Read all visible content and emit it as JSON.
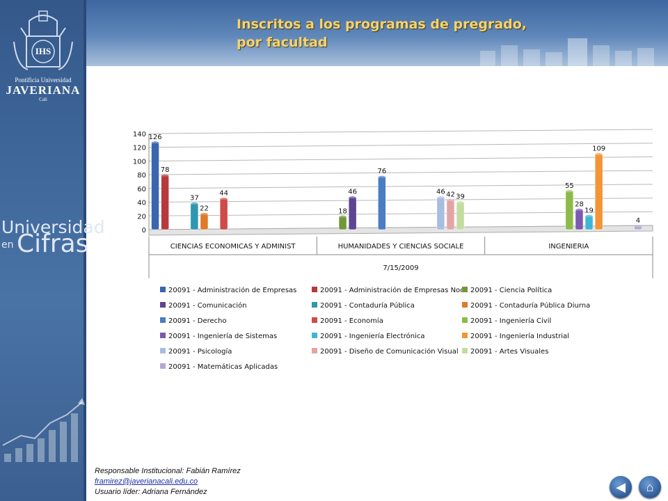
{
  "page": {
    "title_line1": "Inscritos a los programas de pregrado,",
    "title_line2": "por facultad"
  },
  "sidebar": {
    "logo": {
      "line1": "Pontificia Universidad",
      "line2": "JAVERIANA",
      "line3": "Cali",
      "monogram": "IHS"
    },
    "brand": {
      "line1": "Universidad",
      "line2": "en",
      "line3": "Cifras"
    }
  },
  "footer": {
    "responsible": "Responsable Institucional: Fabián Ramírez",
    "email": "framirez@javerianacali.edu.co",
    "leader": "Usuario líder: Adriana Fernández"
  },
  "nav": {
    "back_icon": "back-arrow-icon",
    "home_icon": "home-icon"
  },
  "chart_data": {
    "type": "bar",
    "title": "",
    "xlabel": "7/15/2009",
    "ylabel": "",
    "ylim": [
      0,
      140
    ],
    "yticks": [
      0,
      20,
      40,
      60,
      80,
      100,
      120,
      140
    ],
    "grid": true,
    "legend_position": "bottom",
    "categories": [
      "CIENCIAS ECONOMICAS Y ADMINIST",
      "HUMANIDADES Y CIENCIAS SOCIALE",
      "INGENIERIA"
    ],
    "series": [
      {
        "name": "20091 - Administración de Empresas",
        "color": "#3a66b0",
        "values": [
          126,
          null,
          null
        ]
      },
      {
        "name": "20091 - Administración de Empresas Noc",
        "color": "#b8393c",
        "values": [
          78,
          null,
          null
        ]
      },
      {
        "name": "20091 - Ciencia Política",
        "color": "#72963a",
        "values": [
          null,
          18,
          null
        ]
      },
      {
        "name": "20091 - Comunicación",
        "color": "#5e4591",
        "values": [
          null,
          46,
          null
        ]
      },
      {
        "name": "20091 - Contaduría Pública",
        "color": "#2f97b2",
        "values": [
          37,
          null,
          null
        ]
      },
      {
        "name": "20091 - Contaduría Pública Diurna",
        "color": "#dd7b2a",
        "values": [
          22,
          null,
          null
        ]
      },
      {
        "name": "20091 - Derecho",
        "color": "#4b7cc4",
        "values": [
          null,
          76,
          null
        ]
      },
      {
        "name": "20091 - Economía",
        "color": "#d04a48",
        "values": [
          44,
          null,
          null
        ]
      },
      {
        "name": "20091 - Ingeniería Civil",
        "color": "#8cbb4a",
        "values": [
          null,
          null,
          55
        ]
      },
      {
        "name": "20091 - Ingeniería de Sistemas",
        "color": "#7a5bb0",
        "values": [
          null,
          null,
          28
        ]
      },
      {
        "name": "20091 - Ingeniería Electrónica",
        "color": "#3fb6d6",
        "values": [
          null,
          null,
          19
        ]
      },
      {
        "name": "20091 - Ingeniería Industrial",
        "color": "#f39537",
        "values": [
          null,
          null,
          109
        ]
      },
      {
        "name": "20091 - Psicología",
        "color": "#a9bde0",
        "values": [
          null,
          46,
          null
        ]
      },
      {
        "name": "20091 - Diseño de Comunicación Visual",
        "color": "#e3a5a4",
        "values": [
          null,
          42,
          null
        ]
      },
      {
        "name": "20091 - Artes Visuales",
        "color": "#c3dca0",
        "values": [
          null,
          39,
          null
        ]
      },
      {
        "name": "20091 - Matemáticas Aplicadas",
        "color": "#b6a8d3",
        "values": [
          null,
          null,
          4
        ]
      }
    ]
  }
}
